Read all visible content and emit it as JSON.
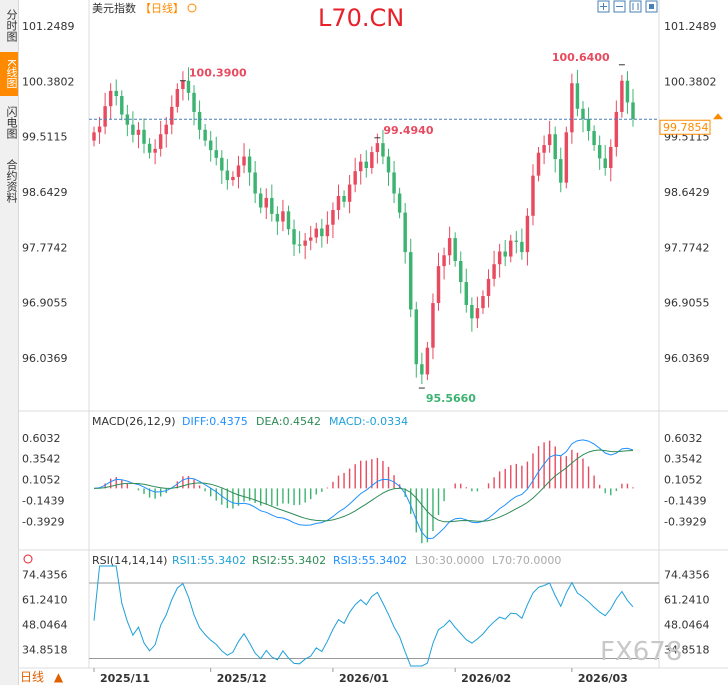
{
  "sidebar": {
    "items": [
      "分时图",
      "K线图",
      "闪电图",
      "合约资料"
    ],
    "active": 1
  },
  "header": {
    "instrument": "美元指数",
    "period": "【日线】",
    "watermark": "L70.CN"
  },
  "toolbar": {
    "icons": [
      "zoom-in-icon",
      "zoom-out-icon",
      "candle-style-icon",
      "fullscreen-icon"
    ]
  },
  "price_panel": {
    "yticks": [
      "101.2489",
      "100.3802",
      "99.5115",
      "98.6429",
      "97.7742",
      "96.9055",
      "96.0369"
    ],
    "current_price": "99.7854",
    "labels": {
      "high1": "100.3900",
      "high2": "99.4940",
      "high3": "100.6400",
      "low": "95.5660"
    }
  },
  "macd_panel": {
    "title": "MACD(26,12,9)",
    "diff": "DIFF:0.4375",
    "dea": "DEA:0.4542",
    "macd": "MACD:-0.0334",
    "yticks": [
      "0.6032",
      "0.3542",
      "0.1052",
      "-0.1439",
      "-0.3929"
    ]
  },
  "rsi_panel": {
    "title": "RSI(14,14,14)",
    "rsi1": "RSI1:55.3402",
    "rsi2": "RSI2:55.3402",
    "rsi3": "RSI3:55.3402",
    "l30": "L30:30.0000",
    "l70": "L70:70.0000",
    "yticks": [
      "74.4356",
      "61.2410",
      "48.0464",
      "34.8518"
    ]
  },
  "xaxis": {
    "labels": [
      "2025/11",
      "2025/12",
      "2026/01",
      "2026/02",
      "2026/03"
    ]
  },
  "footer": {
    "period_select": "日线",
    "brand_watermark": "FX678"
  },
  "colors": {
    "up": "#e84a5f",
    "down": "#3cb371",
    "diff": "#1e90ff",
    "dea": "#2e8b57",
    "rsi": "#1ea0d8",
    "accent": "#ff8a00"
  },
  "chart_data": {
    "type": "candlestick",
    "price_ylim": [
      95.3,
      101.5
    ],
    "macd_ylim": [
      -0.52,
      0.72
    ],
    "rsi_ylim": [
      26,
      79
    ],
    "closes": [
      99.58,
      99.67,
      99.99,
      100.23,
      100.15,
      99.86,
      99.7,
      99.54,
      99.62,
      99.4,
      99.26,
      99.32,
      99.55,
      99.7,
      99.98,
      100.26,
      100.39,
      100.2,
      99.9,
      99.62,
      99.45,
      99.3,
      99.18,
      98.98,
      98.83,
      98.88,
      99.06,
      99.2,
      98.95,
      98.62,
      98.4,
      98.55,
      98.3,
      98.18,
      98.34,
      98.06,
      97.82,
      97.8,
      97.88,
      97.93,
      98.07,
      97.95,
      98.13,
      98.36,
      98.58,
      98.49,
      98.76,
      98.97,
      99.12,
      99.02,
      99.27,
      99.41,
      99.2,
      98.95,
      98.62,
      98.32,
      97.7,
      96.8,
      95.94,
      95.78,
      96.2,
      96.9,
      97.48,
      97.65,
      97.92,
      97.56,
      97.23,
      96.87,
      96.66,
      96.82,
      97.01,
      97.28,
      97.51,
      97.71,
      97.63,
      97.88,
      97.86,
      97.7,
      98.27,
      98.9,
      99.26,
      99.38,
      99.55,
      99.16,
      98.79,
      99.58,
      100.35,
      99.95,
      99.79,
      99.6,
      99.38,
      99.17,
      99.02,
      99.35,
      99.9,
      100.39,
      100.05,
      99.79
    ],
    "opens": [
      99.45,
      99.58,
      99.67,
      99.99,
      100.23,
      100.15,
      99.86,
      99.7,
      99.54,
      99.62,
      99.4,
      99.26,
      99.32,
      99.55,
      99.7,
      99.98,
      100.26,
      100.39,
      100.2,
      99.9,
      99.62,
      99.45,
      99.3,
      99.18,
      98.98,
      98.83,
      98.88,
      99.06,
      99.2,
      98.95,
      98.62,
      98.4,
      98.55,
      98.3,
      98.18,
      98.34,
      98.06,
      97.82,
      97.8,
      97.88,
      97.93,
      98.07,
      97.95,
      98.13,
      98.36,
      98.58,
      98.49,
      98.76,
      98.97,
      99.12,
      99.02,
      99.27,
      99.41,
      99.2,
      98.95,
      98.62,
      98.32,
      97.7,
      96.8,
      95.94,
      95.78,
      96.2,
      96.9,
      97.48,
      97.65,
      97.92,
      97.56,
      97.23,
      96.87,
      96.66,
      96.82,
      97.01,
      97.28,
      97.51,
      97.71,
      97.63,
      97.88,
      97.86,
      97.7,
      98.27,
      98.9,
      99.26,
      99.38,
      99.55,
      99.16,
      98.79,
      99.58,
      100.35,
      99.95,
      99.79,
      99.6,
      99.38,
      99.17,
      99.02,
      99.35,
      99.9,
      100.39,
      100.05
    ],
    "dates": [
      "2025/11",
      "2025/12",
      "2026/01",
      "2026/02",
      "2026/03"
    ]
  }
}
